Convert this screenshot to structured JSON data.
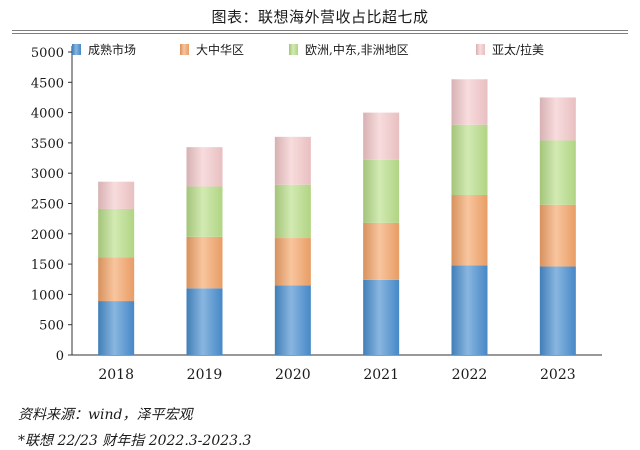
{
  "title": "图表：联想海外营收占比超七成",
  "source": "资料来源：wind，泽平宏观",
  "note": "*联想 22/23 财年指 2022.3-2023.3",
  "chart_data": {
    "type": "bar",
    "stacked": true,
    "categories": [
      "2018",
      "2019",
      "2020",
      "2021",
      "2022",
      "2023"
    ],
    "series": [
      {
        "name": "成熟市场",
        "color": "#4a8fd0",
        "values": [
          890,
          1100,
          1150,
          1240,
          1480,
          1460
        ]
      },
      {
        "name": "大中华区",
        "color": "#f4a56a",
        "values": [
          720,
          850,
          780,
          940,
          1160,
          1020
        ]
      },
      {
        "name": "欧洲,中东,非洲地区",
        "color": "#b9df8a",
        "values": [
          800,
          830,
          880,
          1040,
          1160,
          1060
        ]
      },
      {
        "name": "亚太/拉美",
        "color": "#f4c9cb",
        "values": [
          450,
          650,
          790,
          780,
          750,
          710
        ]
      }
    ],
    "ylim": [
      0,
      5000
    ],
    "yticks": [
      0,
      500,
      1000,
      1500,
      2000,
      2500,
      3000,
      3500,
      4000,
      4500,
      5000
    ],
    "legend_position": "top",
    "grid": false
  }
}
